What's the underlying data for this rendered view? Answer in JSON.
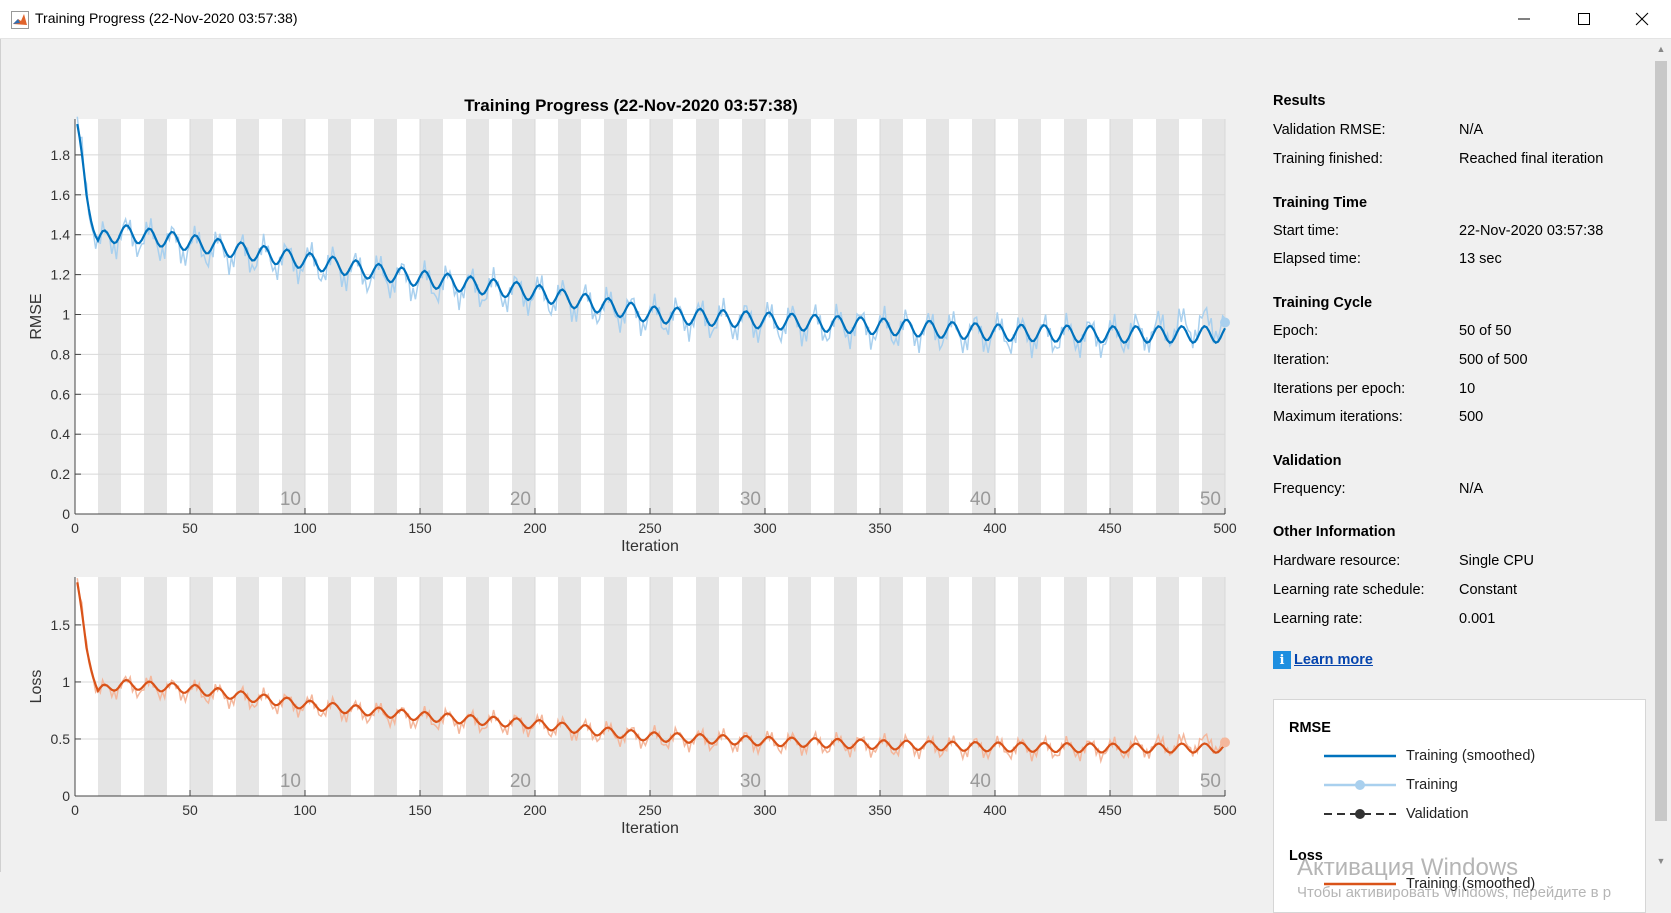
{
  "window": {
    "title": "Training Progress (22-Nov-2020 03:57:38)",
    "icon": "matlab-icon",
    "controls": [
      "minimize-icon",
      "maximize-icon",
      "close-icon"
    ]
  },
  "plot_title": "Training Progress (22-Nov-2020 03:57:38)",
  "colors": {
    "rmse_smoothed": "#0072bd",
    "rmse_raw": "#a9d0ee",
    "loss_smoothed": "#d95319",
    "loss_raw": "#f4b79c",
    "epoch_band": "#e5e5e5",
    "validation": "#333333"
  },
  "chart_data": [
    {
      "type": "line",
      "name": "rmse",
      "xlabel": "Iteration",
      "ylabel": "RMSE",
      "xlim": [
        0,
        500
      ],
      "ylim": [
        0,
        1.98
      ],
      "xticks": [
        0,
        50,
        100,
        150,
        200,
        250,
        300,
        350,
        400,
        450,
        500
      ],
      "yticks": [
        0,
        0.2,
        0.4,
        0.6,
        0.8,
        1,
        1.2,
        1.4,
        1.6,
        1.8
      ],
      "ytick_labels": [
        "0",
        "0.2",
        "0.4",
        "0.6",
        "0.8",
        "1",
        "1.2",
        "1.4",
        "1.6",
        "1.8"
      ],
      "epoch_labels": [
        {
          "x": 100,
          "text": "10"
        },
        {
          "x": 200,
          "text": "20"
        },
        {
          "x": 300,
          "text": "30"
        },
        {
          "x": 400,
          "text": "40"
        },
        {
          "x": 500,
          "text": "50"
        }
      ],
      "grid": true,
      "series": [
        {
          "name": "Training (smoothed)",
          "x": [
            1,
            5,
            10,
            20,
            50,
            100,
            150,
            200,
            250,
            300,
            350,
            400,
            450,
            500
          ],
          "values": [
            1.93,
            1.6,
            1.37,
            1.41,
            1.36,
            1.27,
            1.18,
            1.11,
            1.0,
            0.97,
            0.94,
            0.91,
            0.9,
            0.9
          ]
        },
        {
          "name": "Training",
          "x": [
            1,
            5,
            10,
            20,
            50,
            100,
            150,
            200,
            250,
            300,
            350,
            400,
            450,
            500
          ],
          "values": [
            1.93,
            1.62,
            1.35,
            1.4,
            1.34,
            1.26,
            1.16,
            1.1,
            0.99,
            0.96,
            0.93,
            0.9,
            0.89,
            0.96
          ]
        }
      ]
    },
    {
      "type": "line",
      "name": "loss",
      "xlabel": "Iteration",
      "ylabel": "Loss",
      "xlim": [
        0,
        500
      ],
      "ylim": [
        0,
        1.92
      ],
      "xticks": [
        0,
        50,
        100,
        150,
        200,
        250,
        300,
        350,
        400,
        450,
        500
      ],
      "yticks": [
        0,
        0.5,
        1,
        1.5
      ],
      "ytick_labels": [
        "0",
        "0.5",
        "1",
        "1.5"
      ],
      "epoch_labels": [
        {
          "x": 100,
          "text": "10"
        },
        {
          "x": 200,
          "text": "20"
        },
        {
          "x": 300,
          "text": "30"
        },
        {
          "x": 400,
          "text": "40"
        },
        {
          "x": 500,
          "text": "50"
        }
      ],
      "grid": true,
      "series": [
        {
          "name": "Training (smoothed)",
          "x": [
            1,
            5,
            10,
            20,
            50,
            100,
            150,
            200,
            250,
            300,
            350,
            400,
            450,
            500
          ],
          "values": [
            1.85,
            1.3,
            0.92,
            0.98,
            0.94,
            0.8,
            0.7,
            0.63,
            0.52,
            0.48,
            0.45,
            0.43,
            0.42,
            0.42
          ]
        },
        {
          "name": "Training",
          "x": [
            1,
            5,
            10,
            20,
            50,
            100,
            150,
            200,
            250,
            300,
            350,
            400,
            450,
            500
          ],
          "values": [
            1.85,
            1.32,
            0.9,
            0.97,
            0.92,
            0.79,
            0.68,
            0.62,
            0.51,
            0.47,
            0.44,
            0.42,
            0.41,
            0.47
          ]
        }
      ]
    }
  ],
  "results": {
    "heading": "Results",
    "rows": [
      {
        "label": "Validation RMSE:",
        "value": "N/A"
      },
      {
        "label": "Training finished:",
        "value": "Reached final iteration"
      }
    ]
  },
  "training_time": {
    "heading": "Training Time",
    "rows": [
      {
        "label": "Start time:",
        "value": "22-Nov-2020 03:57:38"
      },
      {
        "label": "Elapsed time:",
        "value": "13 sec"
      }
    ]
  },
  "training_cycle": {
    "heading": "Training Cycle",
    "rows": [
      {
        "label": "Epoch:",
        "value": "50 of 50"
      },
      {
        "label": "Iteration:",
        "value": "500 of 500"
      },
      {
        "label": "Iterations per epoch:",
        "value": "10"
      },
      {
        "label": "Maximum iterations:",
        "value": "500"
      }
    ]
  },
  "validation": {
    "heading": "Validation",
    "rows": [
      {
        "label": "Frequency:",
        "value": "N/A"
      }
    ]
  },
  "other_info": {
    "heading": "Other Information",
    "rows": [
      {
        "label": "Hardware resource:",
        "value": "Single CPU"
      },
      {
        "label": "Learning rate schedule:",
        "value": "Constant"
      },
      {
        "label": "Learning rate:",
        "value": "0.001"
      }
    ]
  },
  "learn_more": {
    "icon": "info-icon",
    "label": "Learn more"
  },
  "legend": {
    "rmse_heading": "RMSE",
    "rmse_items": [
      "Training (smoothed)",
      "Training",
      "Validation"
    ],
    "loss_heading": "Loss",
    "loss_items": [
      "Training (smoothed)"
    ]
  },
  "watermark": {
    "title": "Активация Windows",
    "subtitle": "Чтобы активировать Windows, перейдите в р"
  }
}
